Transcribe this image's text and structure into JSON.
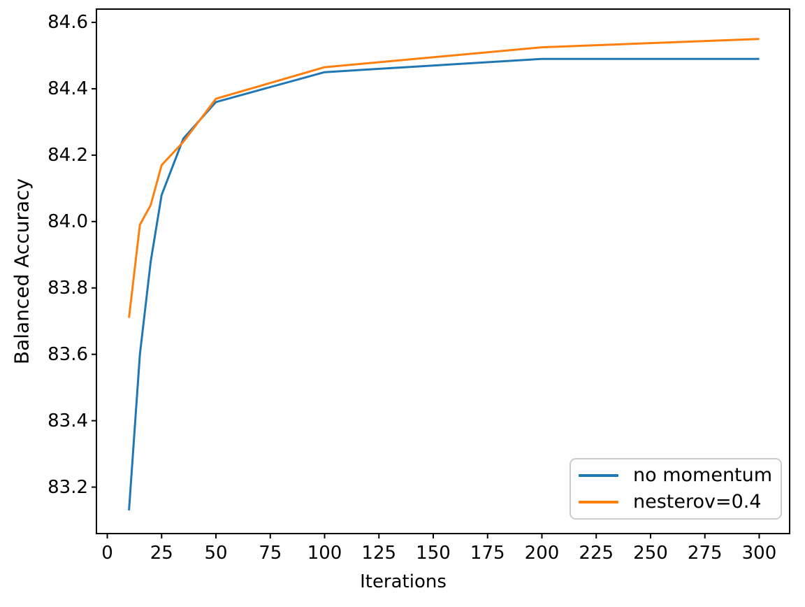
{
  "figure": {
    "background": "#ffffff",
    "text_color": "#000000",
    "spine_color": "#000000"
  },
  "chart_data": {
    "type": "line",
    "title": "",
    "xlabel": "Iterations",
    "ylabel": "Balanced Accuracy",
    "xlim": [
      -5,
      314
    ],
    "ylim": [
      83.06,
      84.64
    ],
    "xticks": [
      0,
      25,
      50,
      75,
      100,
      125,
      150,
      175,
      200,
      225,
      250,
      275,
      300
    ],
    "yticks": [
      83.2,
      83.4,
      83.6,
      83.8,
      84.0,
      84.2,
      84.4,
      84.6
    ],
    "grid": false,
    "legend_position": "lower right",
    "x": [
      10,
      15,
      20,
      25,
      35,
      50,
      100,
      200,
      300
    ],
    "series": [
      {
        "name": "no momentum",
        "color": "#1f77b4",
        "values": [
          83.13,
          83.6,
          83.88,
          84.08,
          84.25,
          84.36,
          84.45,
          84.49,
          84.49
        ]
      },
      {
        "name": "nesterov=0.4",
        "color": "#ff7f0e",
        "values": [
          83.71,
          83.99,
          84.05,
          84.17,
          84.24,
          84.37,
          84.465,
          84.525,
          84.55
        ]
      }
    ]
  }
}
